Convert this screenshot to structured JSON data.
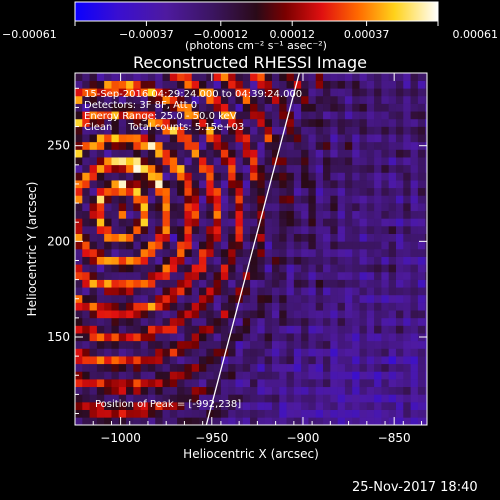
{
  "chart_data": {
    "type": "heatmap",
    "title": "Reconstructed RHESSI Image",
    "xlabel": "Heliocentric X (arcsec)",
    "ylabel": "Heliocentric Y (arcsec)",
    "xlim": [
      -1025,
      -832
    ],
    "ylim": [
      104,
      288
    ],
    "xticks": [
      {
        "value": -1000,
        "label": "−1000"
      },
      {
        "value": -950,
        "label": "−950"
      },
      {
        "value": -900,
        "label": "−900"
      },
      {
        "value": -850,
        "label": "−850"
      }
    ],
    "yticks": [
      {
        "value": 150,
        "label": "150"
      },
      {
        "value": 200,
        "label": "200"
      },
      {
        "value": 250,
        "label": "250"
      }
    ],
    "colorbar": {
      "colormap": "blue-purple-red-orange-yellow-white",
      "range": [
        -0.00061,
        0.00061
      ],
      "ticks": [
        {
          "value": -0.00061,
          "label": "−0.00061"
        },
        {
          "value": -0.00037,
          "label": "−0.00037"
        },
        {
          "value": -0.00012,
          "label": "−0.00012"
        },
        {
          "value": 0.00012,
          "label": "0.00012"
        },
        {
          "value": 0.00037,
          "label": "0.00037"
        },
        {
          "value": 0.00061,
          "label": "0.00061"
        }
      ],
      "unit_label": "(photons cm⁻² s⁻¹ asec⁻²)"
    },
    "annotations": [
      "15-Sep-2016 04:29:24.000 to 04:39:24.000",
      "Detectors: 3F 8F, Att 0",
      "Energy Range: 25.0 - 50.0 keV",
      "Clean     Total counts: 5.15e+03"
    ],
    "peak_label": "Position of Peak = [-992,238]",
    "peak": {
      "x": -992,
      "y": 238
    },
    "limb_line": [
      {
        "x": -953,
        "y": 104
      },
      {
        "x": -902,
        "y": 288
      }
    ],
    "pixel_size_arcsec": 4,
    "pattern": {
      "ring_center": {
        "x": -1000,
        "y": 215
      },
      "ring_spacing_arcsec": 13,
      "hot_region": "left of limb line",
      "quiet_region": "right side, toward lower-right"
    }
  },
  "footer": {
    "date": "25-Nov-2017 18:40"
  }
}
